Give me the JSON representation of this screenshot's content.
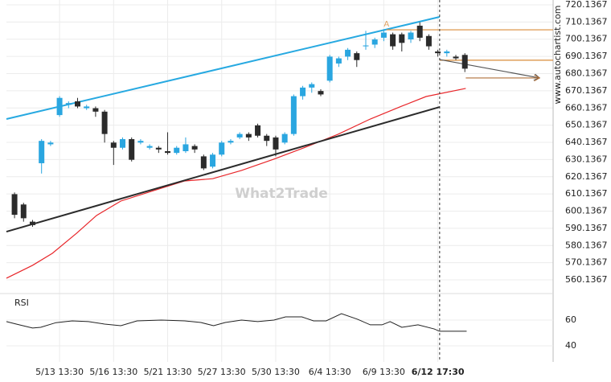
{
  "chart_data": [
    {
      "type": "candlestick",
      "watermark": "What2Trade",
      "source": "www.autochartist.com",
      "categories": [
        null,
        null,
        null,
        null,
        null,
        "5/13 13:30",
        null,
        null,
        null,
        null,
        null,
        "5/16 13:30",
        null,
        null,
        null,
        null,
        null,
        "5/21 13:30",
        null,
        null,
        null,
        null,
        null,
        "5/27 13:30",
        null,
        null,
        null,
        null,
        null,
        "5/30 13:30",
        null,
        null,
        null,
        null,
        null,
        "6/4 13:30",
        null,
        null,
        null,
        null,
        null,
        "6/9 13:30",
        null,
        null,
        null,
        null,
        null,
        "6/12 17:30",
        null,
        null,
        null
      ],
      "open": [
        610,
        604,
        594,
        628,
        639,
        656,
        662,
        664,
        660,
        660,
        658,
        640,
        637,
        642,
        640,
        637,
        637,
        635,
        634,
        635,
        638,
        632,
        626,
        633,
        640,
        643,
        645,
        650,
        644,
        643,
        640,
        645,
        667,
        672,
        670,
        676,
        686,
        690,
        692,
        696,
        697,
        701,
        703,
        703,
        700,
        708,
        702,
        693,
        692,
        690,
        691
      ],
      "close": [
        598,
        596,
        592,
        641,
        640,
        666,
        663,
        661,
        661,
        658,
        645,
        637,
        642,
        630,
        641,
        638,
        636,
        634,
        637,
        639,
        636,
        625,
        633,
        640,
        641,
        645,
        643,
        644,
        641,
        636,
        645,
        667,
        672,
        674,
        668,
        690,
        689,
        694,
        688,
        696.5,
        700,
        704,
        696,
        698,
        704,
        701,
        696,
        692,
        693,
        689,
        683
      ],
      "high": [
        611,
        605,
        595,
        642,
        641,
        667,
        664,
        666,
        662,
        661,
        659,
        641,
        643,
        643,
        642,
        639,
        638,
        646,
        638,
        643,
        639,
        633,
        634,
        641,
        642,
        646,
        646,
        651,
        645,
        644,
        646,
        668,
        673,
        675,
        671,
        691,
        690,
        695,
        693,
        705,
        701,
        706,
        704,
        704,
        705,
        710,
        703,
        694,
        694,
        691,
        692
      ],
      "low": [
        596,
        594,
        591,
        622,
        638,
        655,
        660,
        660,
        659,
        655,
        640,
        627,
        636,
        629,
        639,
        636,
        634,
        633,
        633,
        634,
        634,
        624,
        625,
        632,
        639,
        642,
        641,
        643,
        638,
        632,
        639,
        644,
        665,
        669,
        667,
        675,
        684,
        688,
        684,
        694,
        695,
        699,
        694,
        693,
        698,
        699,
        694,
        690,
        690,
        688,
        681
      ],
      "up_color": "#2aa6e0",
      "down_color": "#2b2b2b",
      "xlim": [
        -0.9,
        59.8
      ],
      "ylim": [
        552.2,
        722.94
      ],
      "yticks": [
        560.1367,
        570.1367,
        580.1367,
        590.1367,
        600.1367,
        610.1367,
        620.1367,
        630.1367,
        640.1367,
        650.1367,
        660.1367,
        670.1367,
        680.1367,
        690.1367,
        700.1367,
        710.1367,
        720.1367
      ],
      "grid": true,
      "vline_x": 47.2,
      "pattern_label": {
        "text": "A",
        "x": 41.3,
        "value": 708.9,
        "color": "#e0a060"
      },
      "overlays": [
        {
          "color": "#e8262a",
          "x": [
            -0.9,
            2,
            4.2,
            6.9,
            9.1,
            11.8,
            15.4,
            18.9,
            22,
            25.2,
            28.75,
            32.3,
            35.9,
            39.5,
            43,
            45.7,
            50.1
          ],
          "values": [
            561.1,
            568.6,
            575.6,
            587.3,
            597.6,
            606,
            612,
            617.7,
            619,
            623.8,
            630.3,
            637.3,
            644.8,
            653.7,
            661.2,
            666.8,
            671.5
          ]
        },
        {
          "color": "#27a9e1",
          "x": [
            -0.9,
            47.2
          ],
          "values": [
            653.7,
            713.1
          ],
          "width": 2
        },
        {
          "color": "#2b2b2b",
          "x": [
            -0.9,
            47.2
          ],
          "values": [
            588.2,
            660.7
          ],
          "width": 2
        },
        {
          "color": "#d98c3a",
          "x": [
            41.3,
            59.8
          ],
          "values": [
            705.6,
            705.6
          ]
        },
        {
          "color": "#d98c3a",
          "x": [
            47.2,
            59.8
          ],
          "values": [
            687.9,
            687.9
          ]
        },
        {
          "color": "#555555",
          "x": [
            47.2,
            58.3
          ],
          "values": [
            688.3,
            677.6
          ],
          "arrow": true
        },
        {
          "color": "#b0703a",
          "x": [
            50.1,
            58.3
          ],
          "values": [
            677.6,
            677.6
          ],
          "arrow": true
        }
      ]
    },
    {
      "type": "line",
      "title": "RSI",
      "color": "#222",
      "xlim": [
        -0.9,
        59.8
      ],
      "x": [
        -0.9,
        0.2,
        2,
        2.9,
        4.6,
        6.4,
        8.2,
        10,
        11.8,
        13.6,
        16.3,
        18.9,
        20.7,
        22.1,
        23.4,
        25.2,
        27,
        28.8,
        30.1,
        31.9,
        33.2,
        34.6,
        36.3,
        38.1,
        39.5,
        40.8,
        41.7,
        43,
        44.8,
        46.6,
        47.2,
        50.2
      ],
      "values": [
        58.8,
        56.9,
        53.8,
        54.4,
        58,
        59.4,
        58.8,
        56.9,
        55.6,
        59.4,
        60,
        59.4,
        58.1,
        55.6,
        58.1,
        60,
        58.8,
        60,
        62.5,
        62.5,
        59.4,
        59.4,
        65,
        60.6,
        56.3,
        56.3,
        58.8,
        54.4,
        56.3,
        53.1,
        51.3,
        51.3
      ],
      "ylim": [
        27.5,
        77.5
      ],
      "yticks": [
        40,
        60
      ],
      "grid": true
    }
  ]
}
